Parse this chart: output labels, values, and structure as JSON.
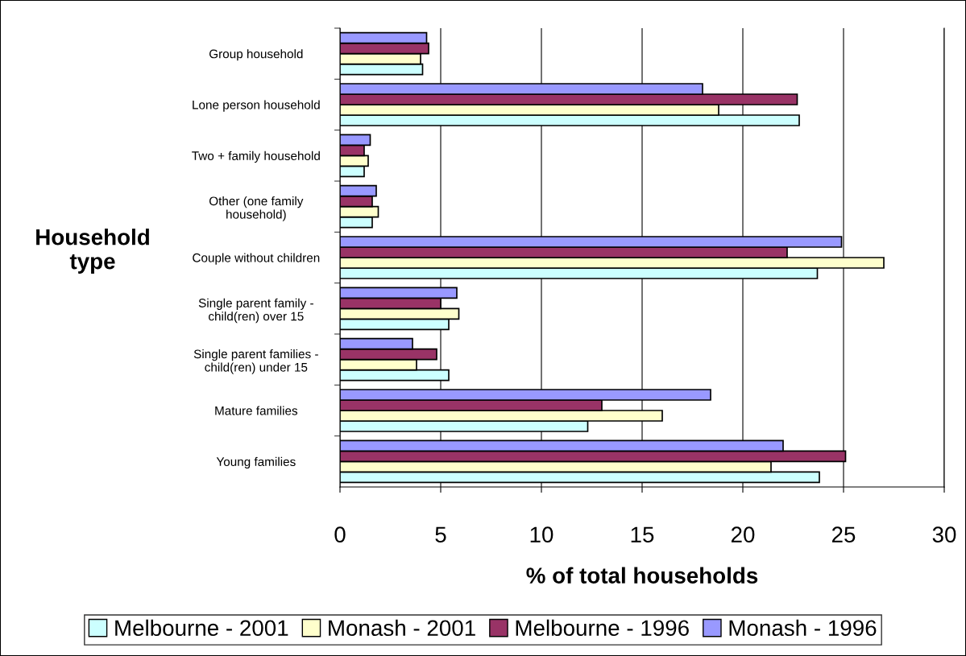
{
  "chart_data": {
    "type": "bar",
    "orientation": "horizontal",
    "xlabel": "% of total households",
    "ylabel": "Household\ntype",
    "categories": [
      "Group household",
      "Lone person household",
      "Two + family household",
      "Other (one family\nhousehold)",
      "Couple without children",
      "Single parent family -\nchild(ren) over 15",
      "Single parent families -\nchild(ren) under 15",
      "Mature families",
      "Young families"
    ],
    "series": [
      {
        "name": "Melbourne - 2001",
        "color": "#ccffff",
        "values": [
          4.1,
          22.8,
          1.2,
          1.6,
          23.7,
          5.4,
          5.4,
          12.3,
          23.8
        ]
      },
      {
        "name": "Monash - 2001",
        "color": "#ffffcc",
        "values": [
          4.0,
          18.8,
          1.4,
          1.9,
          27.0,
          5.9,
          3.8,
          16.0,
          21.4
        ]
      },
      {
        "name": "Melbourne - 1996",
        "color": "#993366",
        "values": [
          4.4,
          22.7,
          1.2,
          1.6,
          22.2,
          5.0,
          4.8,
          13.0,
          25.1
        ]
      },
      {
        "name": "Monash - 1996",
        "color": "#9999ff",
        "values": [
          4.3,
          18.0,
          1.5,
          1.8,
          24.9,
          5.8,
          3.6,
          18.4,
          22.0
        ]
      }
    ],
    "xlim": [
      0,
      30
    ],
    "xticks": [
      0,
      5,
      10,
      15,
      20,
      25,
      30
    ],
    "grid": "x",
    "legend": "bottom"
  }
}
